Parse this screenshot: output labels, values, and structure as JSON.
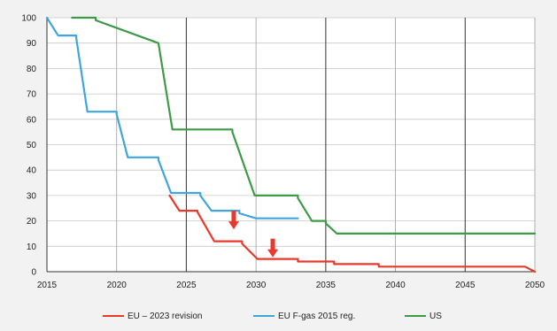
{
  "chart_data": {
    "type": "line",
    "title": "",
    "xlabel": "",
    "ylabel": "",
    "xlim": [
      2015,
      2050
    ],
    "ylim": [
      0,
      100
    ],
    "x_ticks": [
      2015,
      2020,
      2025,
      2030,
      2035,
      2040,
      2045,
      2050
    ],
    "y_ticks": [
      0,
      10,
      20,
      30,
      40,
      50,
      60,
      70,
      80,
      90,
      100
    ],
    "x_tick_labels": [
      "2015",
      "2020",
      "2025",
      "2030",
      "2035",
      "2040",
      "2045",
      "2050"
    ],
    "y_tick_labels": [
      "0",
      "10",
      "20",
      "30",
      "40",
      "50",
      "60",
      "70",
      "80",
      "90",
      "100"
    ],
    "grid": "vertical-major and horizontal",
    "legend_position": "bottom",
    "series": [
      {
        "name": "EU – 2023 revision",
        "color": "#e8392b",
        "x": [
          2023.8,
          2024.5,
          2024.5,
          2025.8,
          2025.8,
          2027,
          2027,
          2029,
          2029,
          2030.1,
          2030.1,
          2033,
          2033,
          2035.6,
          2035.6,
          2038.8,
          2038.8,
          2049.3,
          2050
        ],
        "y": [
          30,
          24,
          24,
          24,
          23.5,
          12,
          12,
          12,
          11,
          5,
          5,
          5,
          4,
          4,
          3,
          3,
          2,
          2,
          0
        ]
      },
      {
        "name": "EU F-gas 2015 reg.",
        "color": "#3fa5dc",
        "x": [
          2015,
          2015.8,
          2015.8,
          2017.1,
          2017.1,
          2017.9,
          2017.9,
          2020,
          2020,
          2020.8,
          2020.8,
          2023,
          2023,
          2023.9,
          2023.9,
          2026,
          2026,
          2026.8,
          2026.8,
          2028.8,
          2028.8,
          2030,
          2030,
          2033
        ],
        "y": [
          100,
          93,
          93,
          93,
          92,
          63,
          63,
          63,
          62,
          45,
          45,
          45,
          44,
          31,
          31,
          31,
          30,
          24,
          24,
          24,
          23,
          21,
          21,
          21
        ]
      },
      {
        "name": "US",
        "color": "#3f9a47",
        "x": [
          2016.8,
          2018.5,
          2018.5,
          2023,
          2023,
          2024,
          2024,
          2028.3,
          2028.3,
          2029.9,
          2029.9,
          2033,
          2033,
          2034,
          2034,
          2035,
          2035,
          2035.8,
          2035.8,
          2050
        ],
        "y": [
          100,
          100,
          99,
          90,
          90,
          56,
          56,
          56,
          55,
          30,
          30,
          30,
          29,
          20,
          20,
          20,
          19,
          15,
          15,
          15
        ]
      }
    ],
    "annotations": [
      {
        "type": "arrow-down",
        "color": "#e8392b",
        "x": 2028.4,
        "y": 24
      },
      {
        "type": "arrow-down",
        "color": "#e8392b",
        "x": 2031.2,
        "y": 13
      }
    ]
  }
}
